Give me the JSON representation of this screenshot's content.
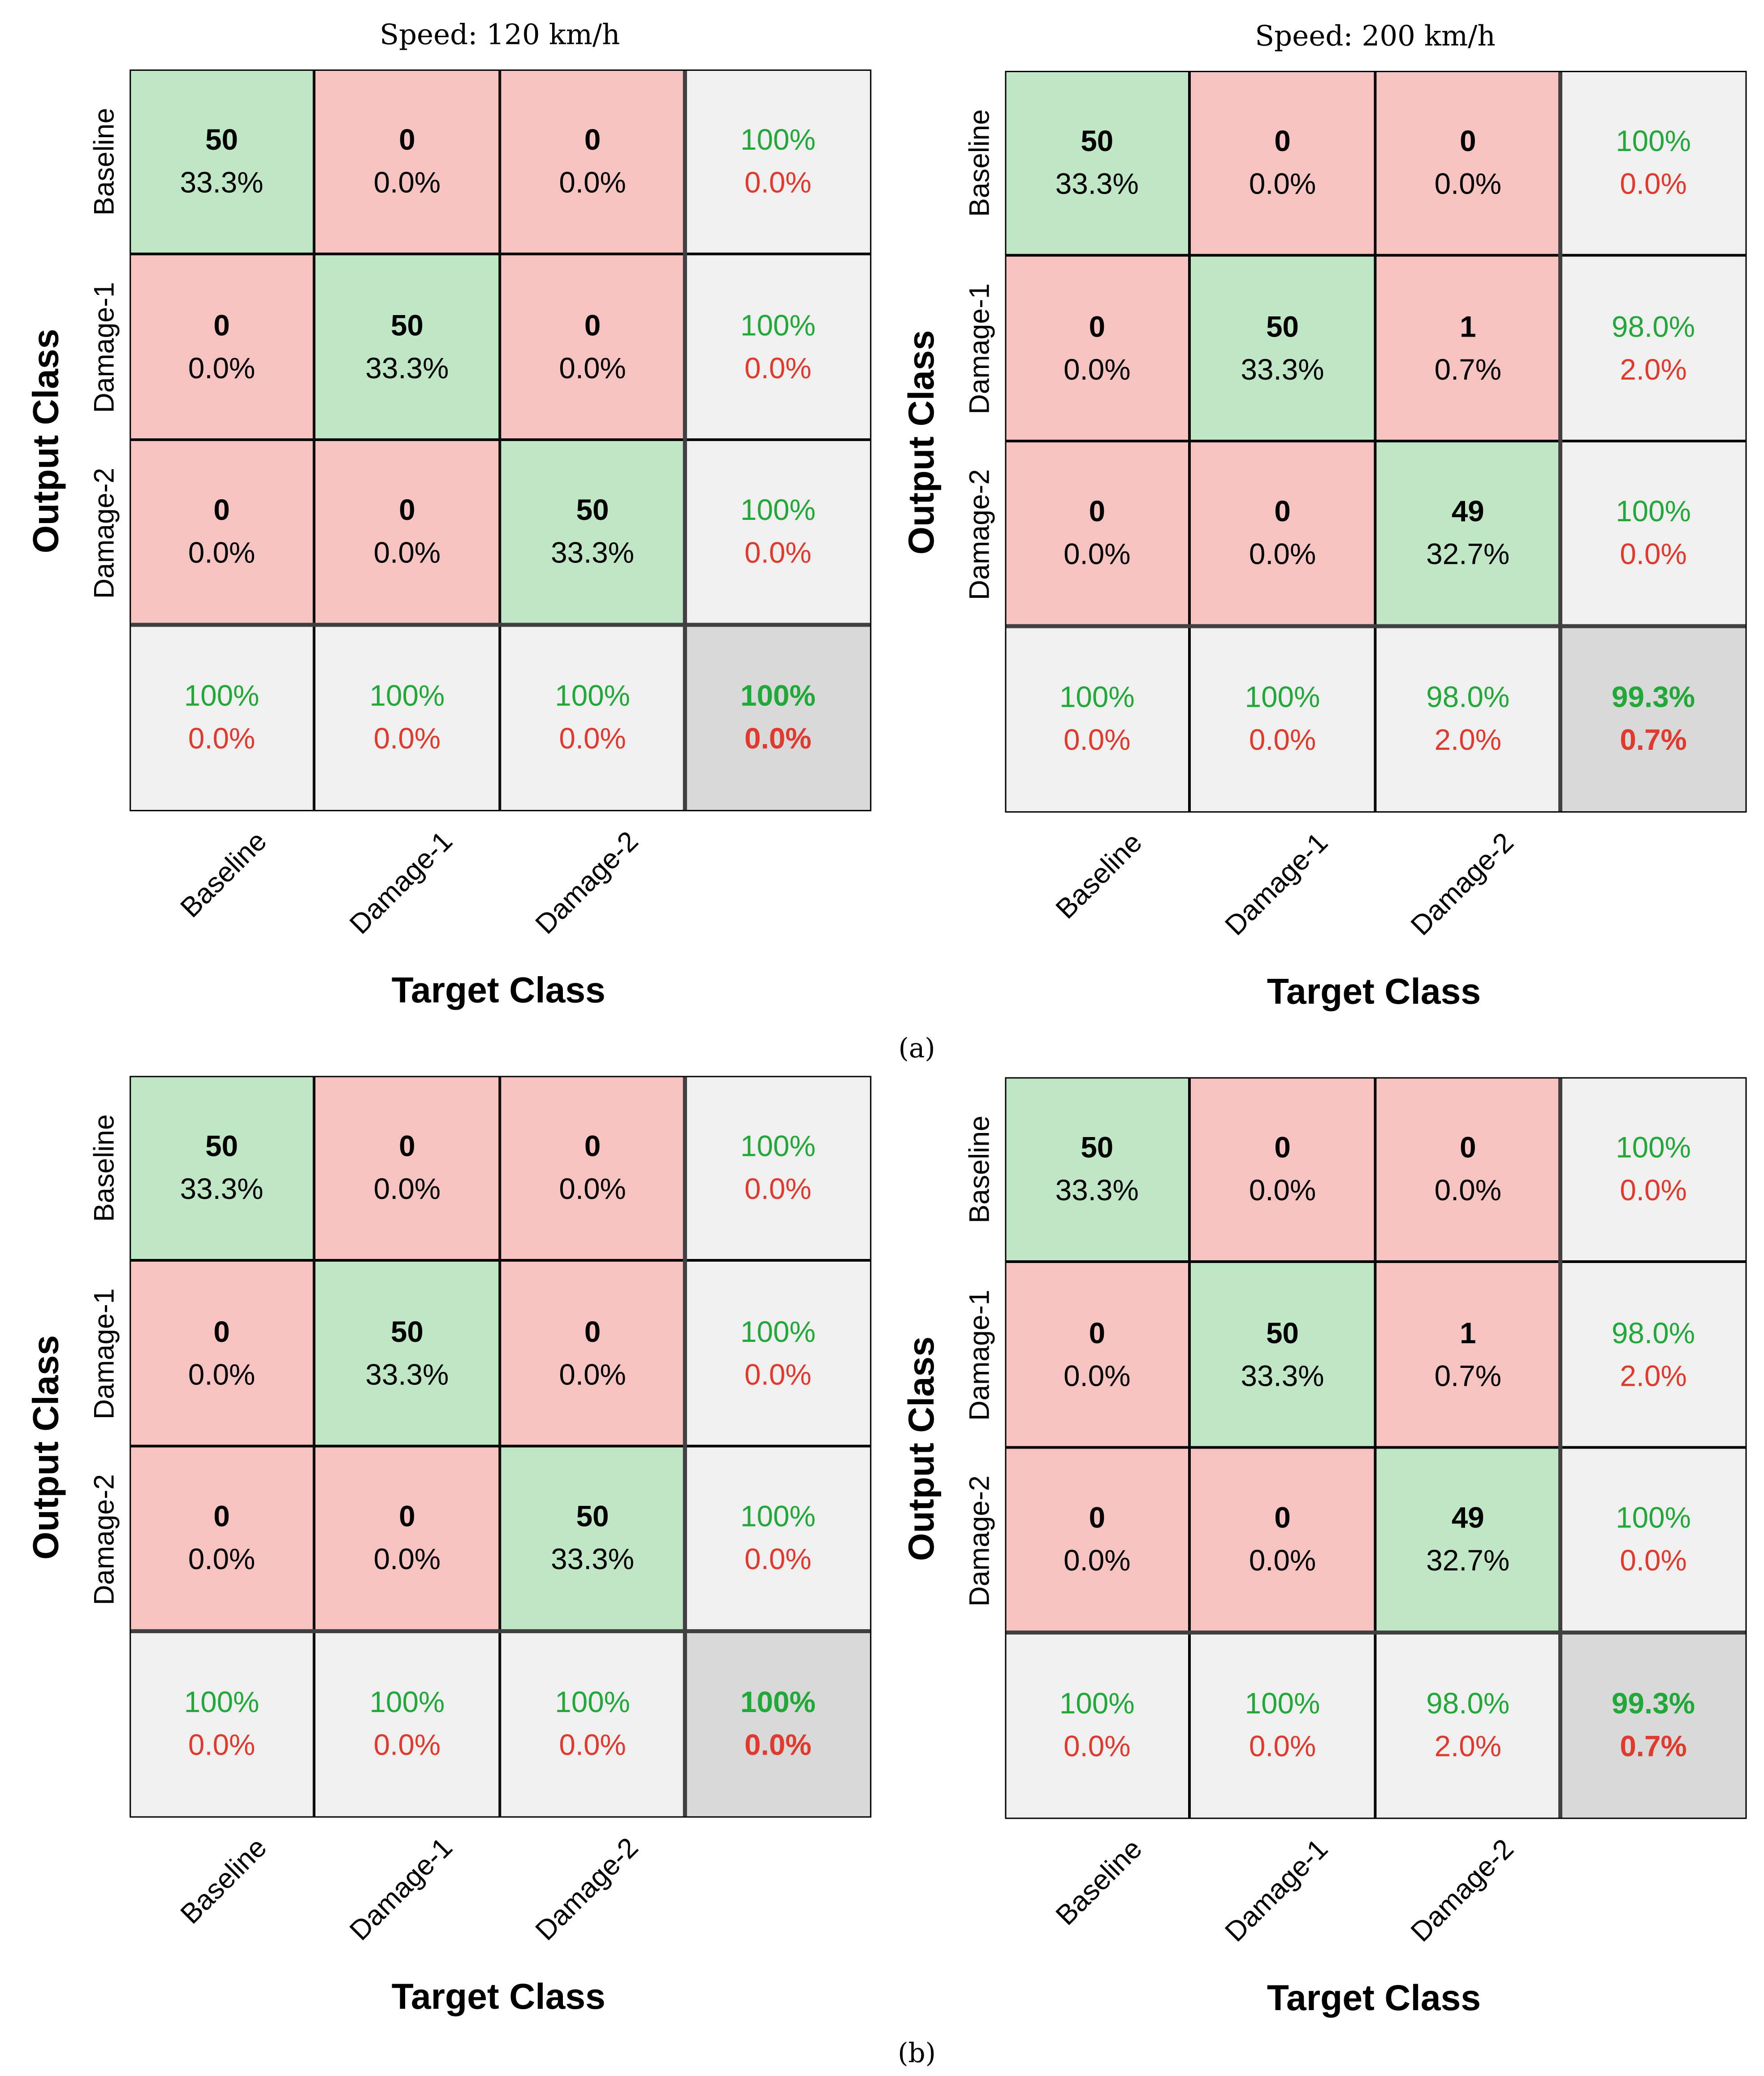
{
  "panel_labels": [
    "(a)",
    "(b)"
  ],
  "chart_data": [
    {
      "type": "heatmap",
      "title": "Speed: 120 km/h",
      "xlabel": "Target Class",
      "ylabel": "Output Class",
      "classes": [
        "Baseline",
        "Damage-1",
        "Damage-2"
      ],
      "counts": [
        [
          "50",
          "0",
          "0"
        ],
        [
          "0",
          "50",
          "0"
        ],
        [
          "0",
          "0",
          "50"
        ]
      ],
      "cell_pct": [
        [
          "33.3%",
          "0.0%",
          "0.0%"
        ],
        [
          "0.0%",
          "33.3%",
          "0.0%"
        ],
        [
          "0.0%",
          "0.0%",
          "33.3%"
        ]
      ],
      "row_correct": [
        "100%",
        "100%",
        "100%"
      ],
      "row_error": [
        "0.0%",
        "0.0%",
        "0.0%"
      ],
      "col_correct": [
        "100%",
        "100%",
        "100%"
      ],
      "col_error": [
        "0.0%",
        "0.0%",
        "0.0%"
      ],
      "overall_correct": "100%",
      "overall_error": "0.0%"
    },
    {
      "type": "heatmap",
      "title": "Speed: 200 km/h",
      "xlabel": "Target Class",
      "ylabel": "Output Class",
      "classes": [
        "Baseline",
        "Damage-1",
        "Damage-2"
      ],
      "counts": [
        [
          "50",
          "0",
          "0"
        ],
        [
          "0",
          "50",
          "1"
        ],
        [
          "0",
          "0",
          "49"
        ]
      ],
      "cell_pct": [
        [
          "33.3%",
          "0.0%",
          "0.0%"
        ],
        [
          "0.0%",
          "33.3%",
          "0.7%"
        ],
        [
          "0.0%",
          "0.0%",
          "32.7%"
        ]
      ],
      "row_correct": [
        "100%",
        "98.0%",
        "100%"
      ],
      "row_error": [
        "0.0%",
        "2.0%",
        "0.0%"
      ],
      "col_correct": [
        "100%",
        "100%",
        "98.0%"
      ],
      "col_error": [
        "0.0%",
        "0.0%",
        "2.0%"
      ],
      "overall_correct": "99.3%",
      "overall_error": "0.7%"
    },
    {
      "type": "heatmap",
      "title": "",
      "xlabel": "Target Class",
      "ylabel": "Output Class",
      "classes": [
        "Baseline",
        "Damage-1",
        "Damage-2"
      ],
      "counts": [
        [
          "50",
          "0",
          "0"
        ],
        [
          "0",
          "50",
          "0"
        ],
        [
          "0",
          "0",
          "50"
        ]
      ],
      "cell_pct": [
        [
          "33.3%",
          "0.0%",
          "0.0%"
        ],
        [
          "0.0%",
          "33.3%",
          "0.0%"
        ],
        [
          "0.0%",
          "0.0%",
          "33.3%"
        ]
      ],
      "row_correct": [
        "100%",
        "100%",
        "100%"
      ],
      "row_error": [
        "0.0%",
        "0.0%",
        "0.0%"
      ],
      "col_correct": [
        "100%",
        "100%",
        "100%"
      ],
      "col_error": [
        "0.0%",
        "0.0%",
        "0.0%"
      ],
      "overall_correct": "100%",
      "overall_error": "0.0%"
    },
    {
      "type": "heatmap",
      "title": "",
      "xlabel": "Target Class",
      "ylabel": "Output Class",
      "classes": [
        "Baseline",
        "Damage-1",
        "Damage-2"
      ],
      "counts": [
        [
          "50",
          "0",
          "0"
        ],
        [
          "0",
          "50",
          "1"
        ],
        [
          "0",
          "0",
          "49"
        ]
      ],
      "cell_pct": [
        [
          "33.3%",
          "0.0%",
          "0.0%"
        ],
        [
          "0.0%",
          "33.3%",
          "0.7%"
        ],
        [
          "0.0%",
          "0.0%",
          "32.7%"
        ]
      ],
      "row_correct": [
        "100%",
        "98.0%",
        "100%"
      ],
      "row_error": [
        "0.0%",
        "2.0%",
        "0.0%"
      ],
      "col_correct": [
        "100%",
        "100%",
        "98.0%"
      ],
      "col_error": [
        "0.0%",
        "0.0%",
        "2.0%"
      ],
      "overall_correct": "99.3%",
      "overall_error": "0.7%"
    }
  ]
}
